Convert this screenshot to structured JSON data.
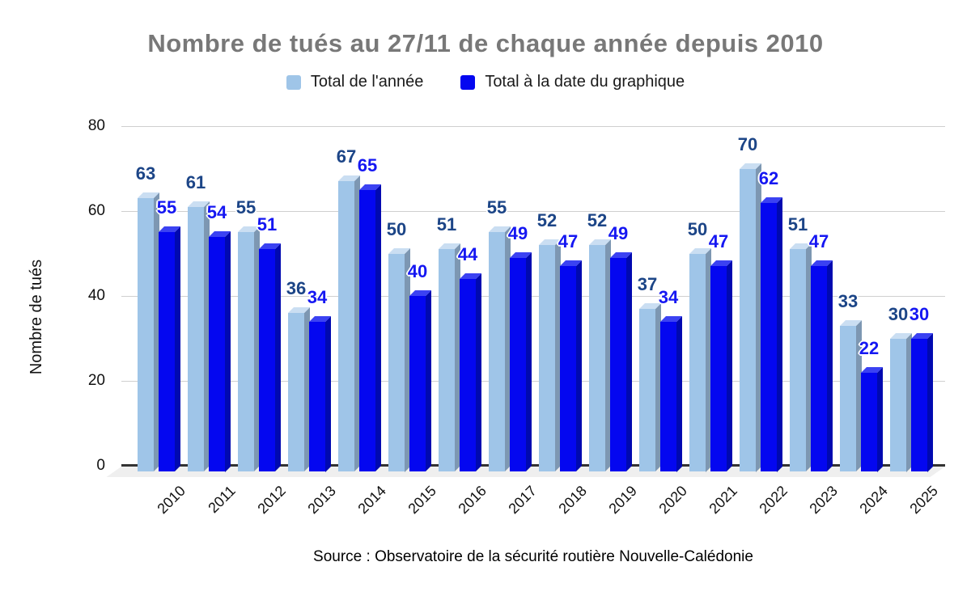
{
  "chart": {
    "title": "Nombre de tués au 27/11 de chaque année depuis 2010",
    "source": "Source : Observatoire de la sécurité routière Nouvelle-Calédonie"
  },
  "chart_data": {
    "type": "bar",
    "title": "Nombre de tués au 27/11 de chaque année depuis 2010",
    "xlabel": "",
    "ylabel": "Nombre de tués",
    "categories": [
      "2010",
      "2011",
      "2012",
      "2013",
      "2014",
      "2015",
      "2016",
      "2017",
      "2018",
      "2019",
      "2020",
      "2021",
      "2022",
      "2023",
      "2024",
      "2025"
    ],
    "series": [
      {
        "name": "Total de l'année",
        "values": [
          63,
          61,
          55,
          36,
          67,
          50,
          51,
          55,
          52,
          52,
          37,
          50,
          70,
          51,
          33,
          30
        ],
        "face_color": "#9fc5e8",
        "side_color": "#7d97b2",
        "top_color": "#cadef2",
        "label_color": "#1c4587"
      },
      {
        "name": "Total à la date du graphique",
        "values": [
          55,
          54,
          51,
          34,
          65,
          40,
          44,
          49,
          47,
          49,
          34,
          47,
          62,
          47,
          22,
          30
        ],
        "face_color": "#0407f0",
        "side_color": "#0009b0",
        "top_color": "#3b42f2",
        "label_color": "#1517f2"
      }
    ],
    "yticks": [
      0,
      20,
      40,
      60,
      80
    ],
    "ylim": [
      0,
      80
    ],
    "grid": true,
    "legend_position": "top",
    "effect_3d": true,
    "gridline_color": "#cfcfcf",
    "baseline_color": "#333333",
    "floor_color": "#efefef",
    "title_color": "#787878",
    "source": "Source : Observatoire de la sécurité routière Nouvelle-Calédonie"
  }
}
